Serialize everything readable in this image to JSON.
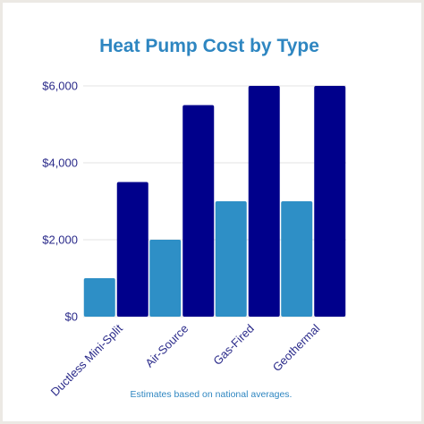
{
  "chart_data": {
    "type": "bar",
    "title": "Heat Pump Cost by Type",
    "categories": [
      "Ductless Mini-Split",
      "Air-Source",
      "Gas-Fired",
      "Geothermal"
    ],
    "series": [
      {
        "values": [
          1000,
          2000,
          3000,
          3000
        ]
      },
      {
        "values": [
          3500,
          5500,
          6000,
          6000
        ]
      }
    ],
    "ylim": [
      0,
      6000
    ],
    "yticks": [
      0,
      2000,
      4000,
      6000
    ],
    "ytick_labels": [
      "$0",
      "$2,000",
      "$4,000",
      "$6,000"
    ],
    "xlabel": "",
    "ylabel": "",
    "grid": true,
    "footnote": "Estimates based on national averages."
  },
  "colors": {
    "series_1": "#2e8fc6",
    "series_2": "#00008b",
    "title": "#2e86c1",
    "axis_text": "#2a2a8a",
    "gridline": "#e3e3e3"
  }
}
